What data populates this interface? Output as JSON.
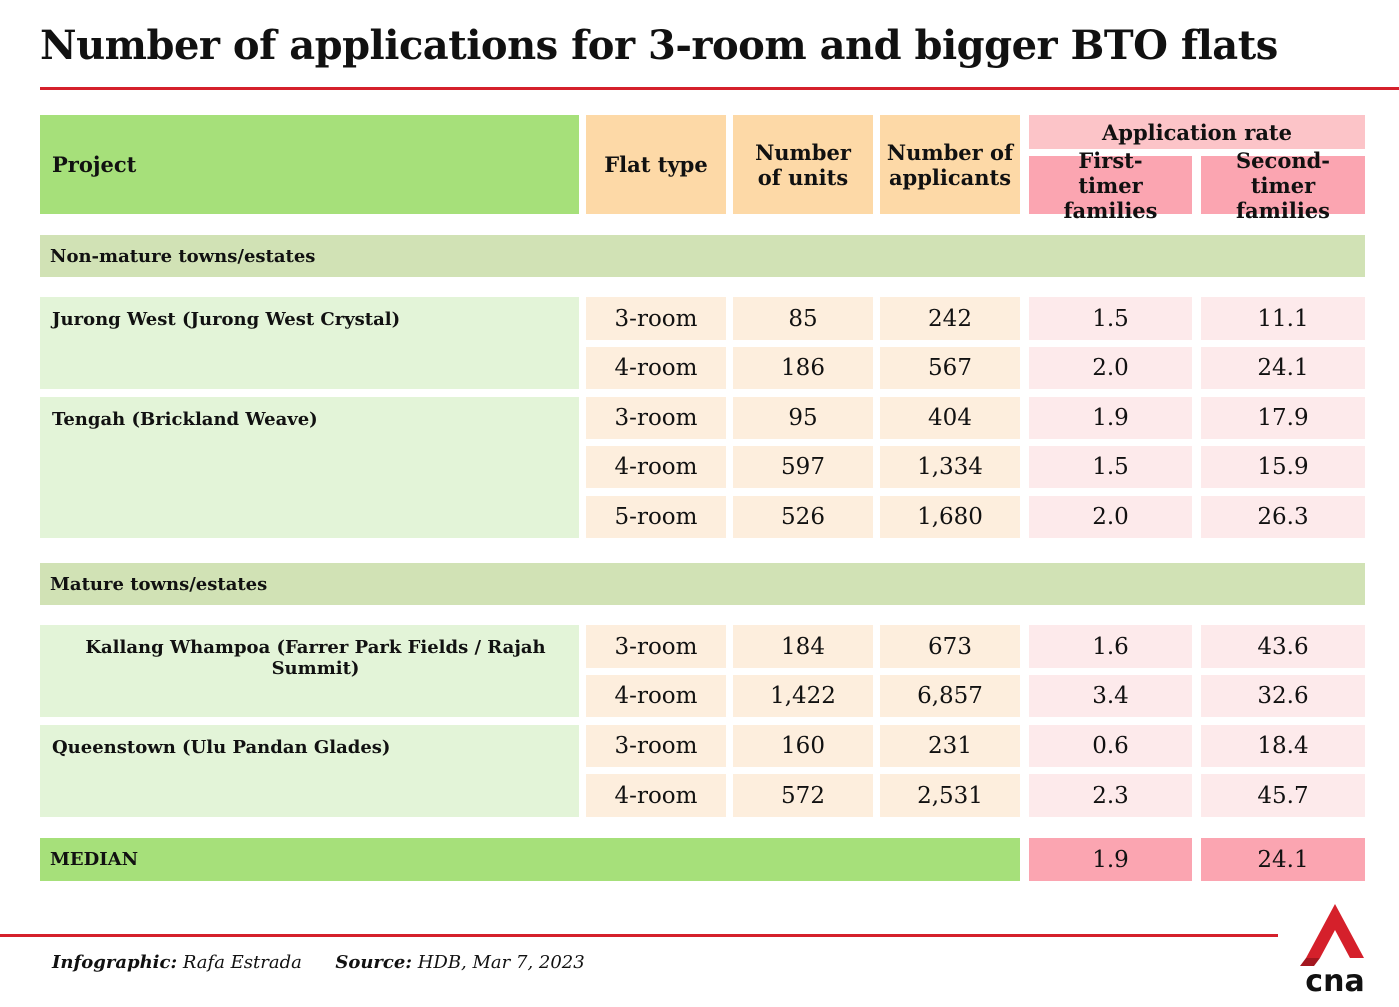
{
  "title": "Number of applications for 3-room and bigger BTO flats",
  "headers": {
    "project": "Project",
    "flat_type": "Flat type",
    "units": "Number of units",
    "applicants": "Number of applicants",
    "application_rate": "Application rate",
    "first_timer": "First-timer families",
    "second_timer": "Second-timer families"
  },
  "sections": [
    {
      "label": "Non-mature towns/estates",
      "projects": [
        {
          "name": "Jurong West (Jurong West Crystal)",
          "rows": [
            {
              "flat_type": "3-room",
              "units": "85",
              "applicants": "242",
              "first": "1.5",
              "second": "11.1"
            },
            {
              "flat_type": "4-room",
              "units": "186",
              "applicants": "567",
              "first": "2.0",
              "second": "24.1"
            }
          ]
        },
        {
          "name": "Tengah (Brickland Weave)",
          "rows": [
            {
              "flat_type": "3-room",
              "units": "95",
              "applicants": "404",
              "first": "1.9",
              "second": "17.9"
            },
            {
              "flat_type": "4-room",
              "units": "597",
              "applicants": "1,334",
              "first": "1.5",
              "second": "15.9"
            },
            {
              "flat_type": "5-room",
              "units": "526",
              "applicants": "1,680",
              "first": "2.0",
              "second": "26.3"
            }
          ]
        }
      ]
    },
    {
      "label": "Mature towns/estates",
      "projects": [
        {
          "name": "Kallang Whampoa (Farrer Park Fields / Rajah Summit)",
          "rows": [
            {
              "flat_type": "3-room",
              "units": "184",
              "applicants": "673",
              "first": "1.6",
              "second": "43.6"
            },
            {
              "flat_type": "4-room",
              "units": "1,422",
              "applicants": "6,857",
              "first": "3.4",
              "second": "32.6"
            }
          ]
        },
        {
          "name": "Queenstown (Ulu Pandan Glades)",
          "rows": [
            {
              "flat_type": "3-room",
              "units": "160",
              "applicants": "231",
              "first": "0.6",
              "second": "18.4"
            },
            {
              "flat_type": "4-room",
              "units": "572",
              "applicants": "2,531",
              "first": "2.3",
              "second": "45.7"
            }
          ]
        }
      ]
    }
  ],
  "median": {
    "label": "MEDIAN",
    "first": "1.9",
    "second": "24.1"
  },
  "footer": {
    "infographic_label": "Infographic:",
    "infographic_value": "Rafa Estrada",
    "source_label": "Source:",
    "source_value": "HDB, Mar 7, 2023"
  },
  "logo": {
    "text": "cna",
    "color": "#d5202b"
  }
}
